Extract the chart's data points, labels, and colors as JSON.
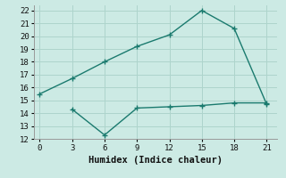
{
  "line1_x": [
    0,
    3,
    6,
    9,
    12,
    15,
    18,
    21
  ],
  "line1_y": [
    15.5,
    16.7,
    18.0,
    19.2,
    20.1,
    22.0,
    20.6,
    14.7
  ],
  "line2_x": [
    3,
    6,
    9,
    12,
    15,
    18,
    21
  ],
  "line2_y": [
    14.3,
    12.3,
    14.4,
    14.5,
    14.6,
    14.8,
    14.8
  ],
  "line_color": "#1a7a6e",
  "bg_color": "#cceae4",
  "grid_color": "#aed4cc",
  "xlabel": "Humidex (Indice chaleur)",
  "xlim": [
    -0.5,
    22
  ],
  "ylim": [
    12,
    22.4
  ],
  "xticks": [
    0,
    3,
    6,
    9,
    12,
    15,
    18,
    21
  ],
  "yticks": [
    12,
    13,
    14,
    15,
    16,
    17,
    18,
    19,
    20,
    21,
    22
  ]
}
